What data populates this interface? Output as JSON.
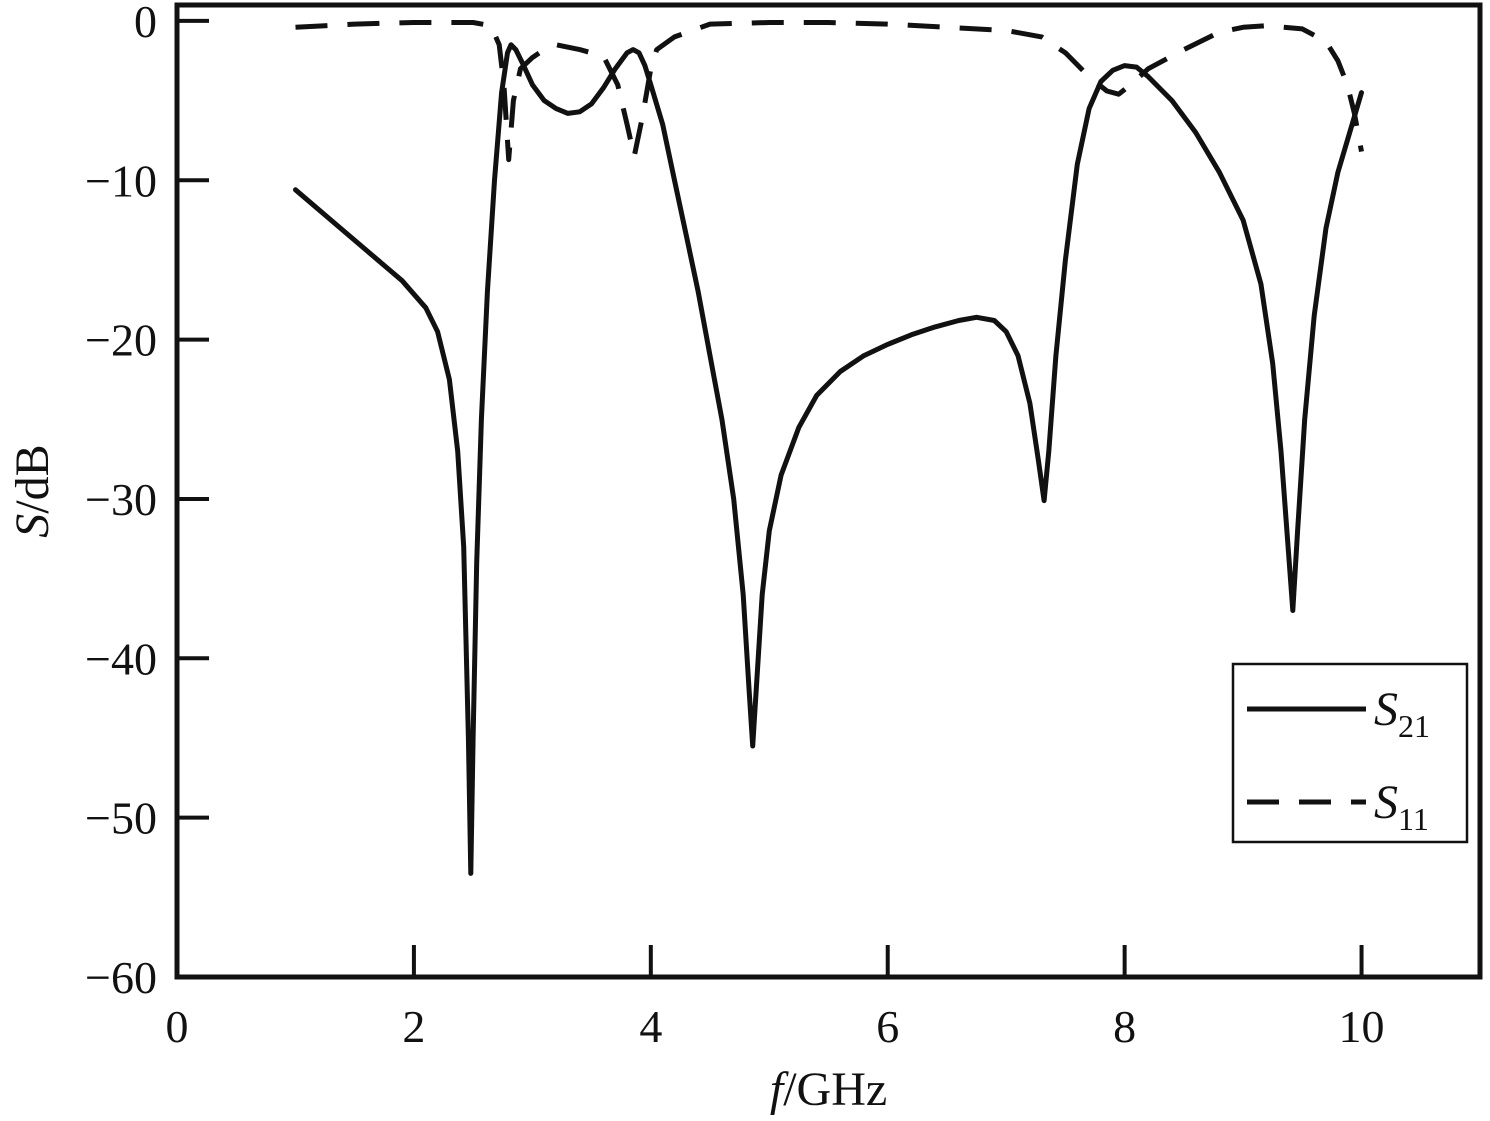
{
  "chart_data": {
    "type": "line",
    "xlabel": {
      "var": "f",
      "unit": "/GHz"
    },
    "ylabel": {
      "var": "S",
      "unit": "/dB"
    },
    "xlim": [
      0,
      11
    ],
    "ylim": [
      -60,
      1
    ],
    "xticks": [
      0,
      2,
      4,
      6,
      8,
      10
    ],
    "yticks": [
      0,
      -10,
      -20,
      -30,
      -40,
      -50,
      -60
    ],
    "xtick_labels": [
      "0",
      "2",
      "4",
      "6",
      "8",
      "10"
    ],
    "ytick_labels": [
      "0",
      "−10",
      "−20",
      "−30",
      "−40",
      "−50",
      "−60"
    ],
    "grid": false,
    "legend_position": "lower-right",
    "series": [
      {
        "name": "S21",
        "name_main": "S",
        "name_sub": "21",
        "style": "solid",
        "color": "#111111",
        "points": [
          [
            1.0,
            -10.6
          ],
          [
            1.3,
            -12.5
          ],
          [
            1.6,
            -14.4
          ],
          [
            1.9,
            -16.3
          ],
          [
            2.1,
            -18.0
          ],
          [
            2.2,
            -19.5
          ],
          [
            2.3,
            -22.5
          ],
          [
            2.37,
            -27.0
          ],
          [
            2.42,
            -33.0
          ],
          [
            2.46,
            -45.0
          ],
          [
            2.48,
            -53.5
          ],
          [
            2.5,
            -45.0
          ],
          [
            2.53,
            -34.0
          ],
          [
            2.57,
            -25.0
          ],
          [
            2.62,
            -17.0
          ],
          [
            2.68,
            -10.0
          ],
          [
            2.74,
            -4.5
          ],
          [
            2.79,
            -2.0
          ],
          [
            2.82,
            -1.5
          ],
          [
            2.86,
            -1.8
          ],
          [
            2.92,
            -2.7
          ],
          [
            3.0,
            -4.0
          ],
          [
            3.1,
            -5.0
          ],
          [
            3.2,
            -5.5
          ],
          [
            3.3,
            -5.8
          ],
          [
            3.4,
            -5.7
          ],
          [
            3.5,
            -5.2
          ],
          [
            3.6,
            -4.2
          ],
          [
            3.7,
            -3.0
          ],
          [
            3.8,
            -2.0
          ],
          [
            3.85,
            -1.8
          ],
          [
            3.9,
            -2.0
          ],
          [
            3.95,
            -2.8
          ],
          [
            4.0,
            -4.0
          ],
          [
            4.1,
            -6.5
          ],
          [
            4.2,
            -10.0
          ],
          [
            4.3,
            -13.5
          ],
          [
            4.4,
            -17.0
          ],
          [
            4.5,
            -21.0
          ],
          [
            4.6,
            -25.0
          ],
          [
            4.7,
            -30.0
          ],
          [
            4.78,
            -36.0
          ],
          [
            4.83,
            -42.0
          ],
          [
            4.86,
            -45.5
          ],
          [
            4.89,
            -42.0
          ],
          [
            4.94,
            -36.0
          ],
          [
            5.0,
            -32.0
          ],
          [
            5.1,
            -28.5
          ],
          [
            5.25,
            -25.5
          ],
          [
            5.4,
            -23.5
          ],
          [
            5.6,
            -22.0
          ],
          [
            5.8,
            -21.0
          ],
          [
            6.0,
            -20.3
          ],
          [
            6.2,
            -19.7
          ],
          [
            6.4,
            -19.2
          ],
          [
            6.6,
            -18.8
          ],
          [
            6.75,
            -18.6
          ],
          [
            6.9,
            -18.8
          ],
          [
            7.0,
            -19.5
          ],
          [
            7.1,
            -21.0
          ],
          [
            7.2,
            -24.0
          ],
          [
            7.27,
            -27.5
          ],
          [
            7.32,
            -30.1
          ],
          [
            7.36,
            -27.0
          ],
          [
            7.42,
            -21.0
          ],
          [
            7.5,
            -15.0
          ],
          [
            7.6,
            -9.0
          ],
          [
            7.7,
            -5.5
          ],
          [
            7.8,
            -3.8
          ],
          [
            7.9,
            -3.1
          ],
          [
            8.0,
            -2.8
          ],
          [
            8.1,
            -2.9
          ],
          [
            8.2,
            -3.5
          ],
          [
            8.4,
            -5.0
          ],
          [
            8.6,
            -7.0
          ],
          [
            8.8,
            -9.5
          ],
          [
            9.0,
            -12.5
          ],
          [
            9.15,
            -16.5
          ],
          [
            9.25,
            -21.5
          ],
          [
            9.32,
            -27.0
          ],
          [
            9.37,
            -32.0
          ],
          [
            9.42,
            -37.0
          ],
          [
            9.46,
            -32.0
          ],
          [
            9.52,
            -25.0
          ],
          [
            9.6,
            -18.5
          ],
          [
            9.7,
            -13.0
          ],
          [
            9.8,
            -9.5
          ],
          [
            9.9,
            -7.0
          ],
          [
            10.0,
            -4.5
          ]
        ]
      },
      {
        "name": "S11",
        "name_main": "S",
        "name_sub": "11",
        "style": "dashed",
        "color": "#111111",
        "points": [
          [
            1.0,
            -0.4
          ],
          [
            1.5,
            -0.2
          ],
          [
            2.0,
            -0.1
          ],
          [
            2.5,
            -0.1
          ],
          [
            2.65,
            -0.3
          ],
          [
            2.72,
            -1.5
          ],
          [
            2.76,
            -4.0
          ],
          [
            2.8,
            -8.7
          ],
          [
            2.84,
            -5.0
          ],
          [
            2.9,
            -3.0
          ],
          [
            3.0,
            -2.3
          ],
          [
            3.1,
            -1.8
          ],
          [
            3.2,
            -1.5
          ],
          [
            3.4,
            -1.8
          ],
          [
            3.6,
            -2.2
          ],
          [
            3.72,
            -4.0
          ],
          [
            3.8,
            -6.5
          ],
          [
            3.86,
            -8.5
          ],
          [
            3.93,
            -6.0
          ],
          [
            4.0,
            -3.0
          ],
          [
            4.05,
            -1.8
          ],
          [
            4.2,
            -1.0
          ],
          [
            4.5,
            -0.2
          ],
          [
            5.0,
            -0.1
          ],
          [
            5.5,
            -0.1
          ],
          [
            6.0,
            -0.2
          ],
          [
            6.5,
            -0.4
          ],
          [
            7.0,
            -0.6
          ],
          [
            7.3,
            -1.0
          ],
          [
            7.5,
            -2.0
          ],
          [
            7.7,
            -3.5
          ],
          [
            7.85,
            -4.4
          ],
          [
            7.95,
            -4.6
          ],
          [
            8.05,
            -4.0
          ],
          [
            8.2,
            -3.0
          ],
          [
            8.5,
            -1.8
          ],
          [
            8.8,
            -0.7
          ],
          [
            9.0,
            -0.4
          ],
          [
            9.2,
            -0.3
          ],
          [
            9.5,
            -0.5
          ],
          [
            9.7,
            -1.3
          ],
          [
            9.8,
            -2.5
          ],
          [
            9.88,
            -4.0
          ],
          [
            9.94,
            -5.8
          ],
          [
            10.0,
            -8.2
          ]
        ]
      }
    ]
  }
}
